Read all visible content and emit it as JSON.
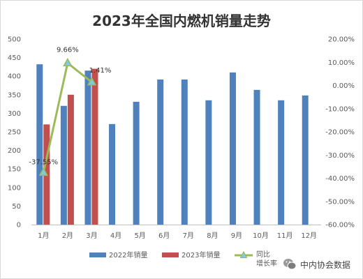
{
  "chart_data": {
    "type": "bar",
    "title": "2023年全国内燃机销量走势",
    "categories": [
      "1月",
      "2月",
      "3月",
      "4月",
      "5月",
      "6月",
      "7月",
      "8月",
      "9月",
      "10月",
      "11月",
      "12月"
    ],
    "series": [
      {
        "name": "2022年销量",
        "type": "bar",
        "axis": "left",
        "color": "#4f81bd",
        "values": [
          432,
          320,
          415,
          271,
          331,
          391,
          391,
          335,
          410,
          363,
          335,
          348
        ]
      },
      {
        "name": "2023年销量",
        "type": "bar",
        "axis": "left",
        "color": "#c0504d",
        "values": [
          270,
          350,
          420,
          null,
          null,
          null,
          null,
          null,
          null,
          null,
          null,
          null
        ]
      },
      {
        "name": "同比增长率",
        "type": "line",
        "axis": "right",
        "color": "#9bbb59",
        "values": [
          -37.55,
          9.66,
          1.41,
          null,
          null,
          null,
          null,
          null,
          null,
          null,
          null,
          null
        ],
        "labels": [
          "-37.55%",
          "9.66%",
          "1.41%"
        ]
      }
    ],
    "left_axis": {
      "min": 0,
      "max": 500,
      "step": 50,
      "ticks": [
        "0",
        "50",
        "100",
        "150",
        "200",
        "250",
        "300",
        "350",
        "400",
        "450",
        "500"
      ]
    },
    "right_axis": {
      "min": -60,
      "max": 20,
      "step": 10,
      "ticks": [
        "-60.00%",
        "-50.00%",
        "-40.00%",
        "-30.00%",
        "-20.00%",
        "-10.00%",
        "0.00%",
        "10.00%",
        "20.00%"
      ]
    },
    "grid": false,
    "legend_position": "bottom",
    "legend": [
      {
        "label": "2022年销量",
        "kind": "bar",
        "color": "#4f81bd"
      },
      {
        "label": "2023年销量",
        "kind": "bar",
        "color": "#c0504d"
      },
      {
        "label": "同比增长率",
        "kind": "line",
        "color": "#9bbb59",
        "lines": [
          "同比",
          "增长率"
        ]
      }
    ]
  },
  "watermark": {
    "text": "中内协会数据",
    "icon": "wechat-icon"
  }
}
